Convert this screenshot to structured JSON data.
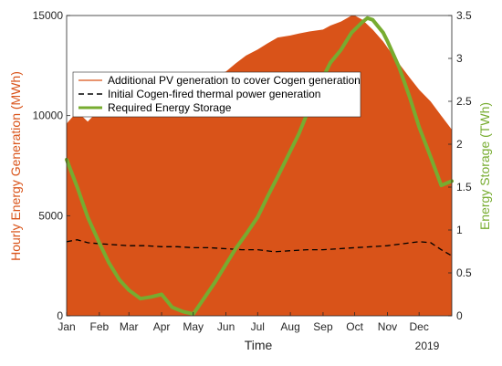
{
  "chart_data": {
    "type": "area",
    "xlabel": "Time",
    "ylabel_left": "Hourly Energy Generation (MWh)",
    "ylabel_right": "Energy Storage (TWh)",
    "year_label": "2019",
    "ylim_left": [
      0,
      15000
    ],
    "ylim_right": [
      0,
      3.5
    ],
    "xlim": [
      0,
      365
    ],
    "month_ticks": [
      {
        "label": "Jan",
        "day": 0
      },
      {
        "label": "Feb",
        "day": 31
      },
      {
        "label": "Mar",
        "day": 59
      },
      {
        "label": "Apr",
        "day": 90
      },
      {
        "label": "May",
        "day": 120
      },
      {
        "label": "Jun",
        "day": 151
      },
      {
        "label": "Jul",
        "day": 181
      },
      {
        "label": "Aug",
        "day": 212
      },
      {
        "label": "Sep",
        "day": 243
      },
      {
        "label": "Oct",
        "day": 273
      },
      {
        "label": "Nov",
        "day": 304
      },
      {
        "label": "Dec",
        "day": 334
      }
    ],
    "yticks_left": [
      0,
      5000,
      10000,
      15000
    ],
    "yticks_right": [
      0,
      0.5,
      1,
      1.5,
      2,
      2.5,
      3,
      3.5
    ],
    "legend_position": "upper-left",
    "series": [
      {
        "name": "Additional PV generation to cover Cogen generation",
        "axis": "left",
        "style": "area",
        "color": "#D95319",
        "x": [
          0,
          10,
          20,
          31,
          40,
          50,
          59,
          70,
          80,
          90,
          100,
          110,
          120,
          130,
          140,
          151,
          160,
          170,
          181,
          190,
          200,
          212,
          220,
          230,
          243,
          250,
          260,
          270,
          273,
          280,
          290,
          300,
          304,
          315,
          325,
          334,
          345,
          355,
          365
        ],
        "y": [
          9600,
          10200,
          9700,
          10300,
          10500,
          10800,
          10900,
          11000,
          11100,
          11300,
          11400,
          11600,
          11700,
          11900,
          12000,
          12200,
          12600,
          13000,
          13300,
          13600,
          13900,
          14000,
          14100,
          14200,
          14300,
          14500,
          14700,
          15000,
          15000,
          14800,
          14300,
          13700,
          13400,
          12600,
          11900,
          11300,
          10700,
          10000,
          9300
        ]
      },
      {
        "name": "Initial Cogen-fired thermal power generation",
        "axis": "left",
        "style": "dashed",
        "color": "#000000",
        "x": [
          0,
          10,
          20,
          31,
          45,
          59,
          75,
          90,
          105,
          120,
          135,
          151,
          166,
          181,
          197,
          212,
          228,
          243,
          258,
          273,
          289,
          304,
          319,
          334,
          345,
          355,
          365
        ],
        "y": [
          3700,
          3800,
          3650,
          3600,
          3550,
          3500,
          3500,
          3450,
          3450,
          3400,
          3400,
          3350,
          3300,
          3300,
          3200,
          3250,
          3300,
          3300,
          3350,
          3400,
          3450,
          3500,
          3600,
          3700,
          3650,
          3300,
          3000
        ]
      },
      {
        "name": "Required Energy Storage",
        "axis": "right",
        "style": "line",
        "color": "#77AC30",
        "x": [
          0,
          10,
          20,
          31,
          40,
          50,
          59,
          70,
          80,
          90,
          100,
          110,
          120,
          130,
          140,
          151,
          160,
          170,
          181,
          190,
          200,
          212,
          220,
          230,
          243,
          250,
          260,
          270,
          280,
          285,
          290,
          300,
          304,
          315,
          325,
          334,
          345,
          355,
          365
        ],
        "y": [
          1.82,
          1.5,
          1.15,
          0.85,
          0.62,
          0.42,
          0.3,
          0.2,
          0.22,
          0.25,
          0.1,
          0.05,
          0.02,
          0.2,
          0.38,
          0.6,
          0.78,
          0.95,
          1.15,
          1.38,
          1.62,
          1.92,
          2.12,
          2.42,
          2.78,
          2.95,
          3.1,
          3.3,
          3.42,
          3.47,
          3.45,
          3.3,
          3.2,
          2.9,
          2.55,
          2.2,
          1.85,
          1.52,
          1.57
        ]
      }
    ]
  }
}
